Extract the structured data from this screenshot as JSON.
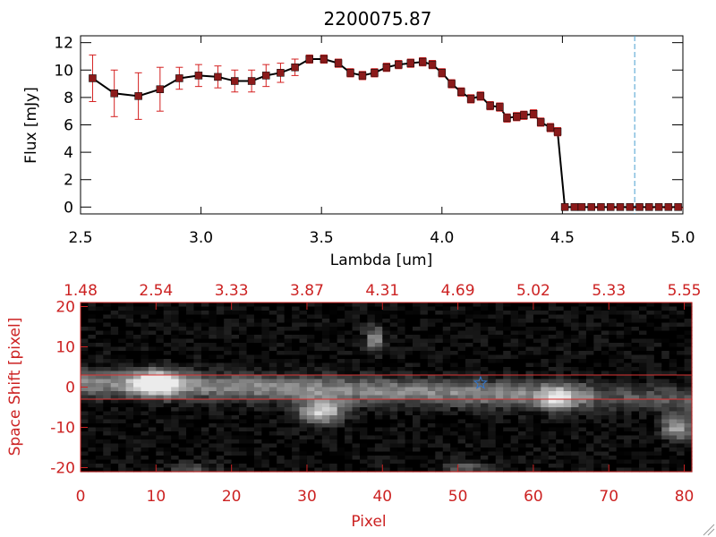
{
  "chart_data": [
    {
      "type": "line",
      "title": "2200075.87",
      "xlabel": "Lambda [um]",
      "ylabel": "Flux [mJy]",
      "xlim": [
        2.5,
        5.0
      ],
      "ylim": [
        -0.5,
        12.5
      ],
      "x_ticks": [
        "2.5",
        "3.0",
        "3.5",
        "4.0",
        "4.5",
        "5.0"
      ],
      "y_ticks": [
        "0",
        "2",
        "4",
        "6",
        "8",
        "10",
        "12"
      ],
      "marker_line_x": 4.8,
      "series": [
        {
          "x": [
            2.55,
            2.64,
            2.74,
            2.83,
            2.91,
            2.99,
            3.07,
            3.14,
            3.21,
            3.27,
            3.33,
            3.39,
            3.45,
            3.51,
            3.57,
            3.62,
            3.67,
            3.72,
            3.77,
            3.82,
            3.87,
            3.92,
            3.96,
            4.0,
            4.04,
            4.08,
            4.12,
            4.16,
            4.2,
            4.24,
            4.27,
            4.31,
            4.34,
            4.38,
            4.41,
            4.45,
            4.48,
            4.51,
            4.55,
            4.58,
            4.62,
            4.66,
            4.7,
            4.74,
            4.78,
            4.82,
            4.86,
            4.9,
            4.94,
            4.98
          ],
          "y": [
            9.4,
            8.3,
            8.1,
            8.6,
            9.4,
            9.6,
            9.5,
            9.2,
            9.2,
            9.6,
            9.8,
            10.2,
            10.8,
            10.8,
            10.5,
            9.8,
            9.6,
            9.8,
            10.2,
            10.4,
            10.5,
            10.6,
            10.4,
            9.8,
            9.0,
            8.4,
            7.9,
            8.1,
            7.4,
            7.3,
            6.5,
            6.6,
            6.7,
            6.8,
            6.2,
            5.8,
            5.5,
            0,
            0,
            0,
            0,
            0,
            0,
            0,
            0,
            0,
            0,
            0,
            0,
            0
          ],
          "yerr": [
            1.7,
            1.7,
            1.7,
            1.6,
            0.8,
            0.8,
            0.8,
            0.8,
            0.8,
            0.8,
            0.7,
            0.6,
            0.3,
            0.3,
            0.3,
            0.3,
            0.3,
            0.3,
            0.3,
            0.3,
            0.3,
            0.3,
            0.3,
            0.3,
            0.3,
            0.3,
            0.3,
            0.3,
            0.3,
            0.3,
            0.3,
            0.3,
            0.3,
            0.3,
            0.3,
            0.3,
            0.3,
            0,
            0,
            0,
            0,
            0,
            0,
            0,
            0,
            0,
            0,
            0,
            0,
            0
          ]
        }
      ],
      "colors": {
        "line": "#000000",
        "marker": "#8b1a1a",
        "errorbar": "#d42020",
        "marker_line": "#4aa0d0"
      }
    },
    {
      "type": "heatmap",
      "xlabel": "Pixel",
      "ylabel": "Space Shift [pixel]",
      "xlim": [
        0,
        81
      ],
      "ylim": [
        -21,
        21
      ],
      "x_ticks": [
        "0",
        "10",
        "20",
        "30",
        "40",
        "50",
        "60",
        "70",
        "80"
      ],
      "y_ticks": [
        "-20",
        "-10",
        "0",
        "10",
        "20"
      ],
      "top_ticks": [
        "1.48",
        "2.54",
        "3.33",
        "3.87",
        "4.31",
        "4.69",
        "5.02",
        "5.33",
        "5.55"
      ],
      "aperture_lines_y": [
        3,
        -3
      ],
      "star_marker": {
        "x": 53,
        "y": 1
      },
      "colors": {
        "axes": "#cc2222",
        "aperture": "#dd3333",
        "star": "#3377cc"
      }
    }
  ]
}
